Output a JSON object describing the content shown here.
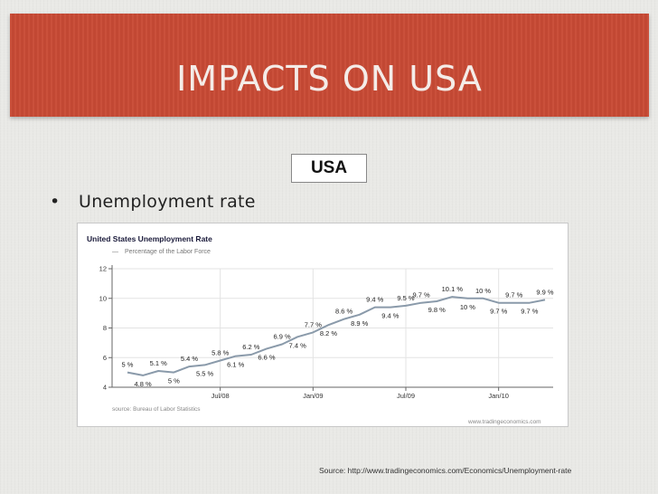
{
  "slide": {
    "title": "IMPACTS ON USA",
    "box_label": "USA",
    "bullet_symbol": "•",
    "bullet_text": "Unemployment rate",
    "source_note": "Source: http://www.tradingeconomics.com/Economics/Unemployment-rate",
    "colors": {
      "title_band": "#c84a35",
      "background": "#e9e9e6",
      "line": "#8a9aaa"
    }
  },
  "chart_data": {
    "type": "line",
    "title": "United States Unemployment Rate",
    "legend": [
      {
        "marker": "—",
        "label": "Percentage of the Labor Force"
      }
    ],
    "source_text": "source: Bureau of Labor Statistics",
    "watermark": "www.tradingeconomics.com",
    "ylim": [
      4,
      12
    ],
    "yticks": [
      {
        "v": 4,
        "label": "4"
      },
      {
        "v": 6,
        "label": "6"
      },
      {
        "v": 8,
        "label": "8"
      },
      {
        "v": 10,
        "label": "10"
      },
      {
        "v": 12,
        "label": "12"
      }
    ],
    "xlim": [
      0,
      23
    ],
    "xticks": [
      {
        "x": 6,
        "label": "Jul/08"
      },
      {
        "x": 12,
        "label": "Jan/09"
      },
      {
        "x": 18,
        "label": "Jul/09"
      },
      {
        "x": 24,
        "label": "Jan/10"
      }
    ],
    "grid": true,
    "series": [
      {
        "values": [
          [
            0,
            5.0
          ],
          [
            1,
            4.8
          ],
          [
            2,
            5.1
          ],
          [
            3,
            5.0
          ],
          [
            4,
            5.4
          ],
          [
            5,
            5.5
          ],
          [
            6,
            5.8
          ],
          [
            7,
            6.1
          ],
          [
            8,
            6.2
          ],
          [
            9,
            6.6
          ],
          [
            10,
            6.9
          ],
          [
            11,
            7.4
          ],
          [
            12,
            7.7
          ],
          [
            13,
            8.2
          ],
          [
            14,
            8.6
          ],
          [
            15,
            8.9
          ],
          [
            16,
            9.4
          ],
          [
            17,
            9.4
          ],
          [
            18,
            9.5
          ],
          [
            19,
            9.7
          ],
          [
            20,
            9.8
          ],
          [
            21,
            10.1
          ],
          [
            22,
            10.0
          ],
          [
            23,
            10.0
          ],
          [
            24,
            9.7
          ],
          [
            25,
            9.7
          ],
          [
            26,
            9.7
          ],
          [
            27,
            9.9
          ]
        ]
      }
    ],
    "data_labels": [
      {
        "x": 0,
        "v": 5.0,
        "text": "5 %",
        "pos": "above"
      },
      {
        "x": 1,
        "v": 4.8,
        "text": "4.8 %",
        "pos": "below"
      },
      {
        "x": 2,
        "v": 5.1,
        "text": "5.1 %",
        "pos": "above"
      },
      {
        "x": 3,
        "v": 5.0,
        "text": "5 %",
        "pos": "below"
      },
      {
        "x": 4,
        "v": 5.4,
        "text": "5.4 %",
        "pos": "above"
      },
      {
        "x": 5,
        "v": 5.5,
        "text": "5.5 %",
        "pos": "below"
      },
      {
        "x": 6,
        "v": 5.8,
        "text": "5.8 %",
        "pos": "above"
      },
      {
        "x": 7,
        "v": 6.1,
        "text": "6.1 %",
        "pos": "below"
      },
      {
        "x": 8,
        "v": 6.2,
        "text": "6.2 %",
        "pos": "above"
      },
      {
        "x": 9,
        "v": 6.6,
        "text": "6.6 %",
        "pos": "below"
      },
      {
        "x": 10,
        "v": 6.9,
        "text": "6.9 %",
        "pos": "above"
      },
      {
        "x": 11,
        "v": 7.4,
        "text": "7.4 %",
        "pos": "below"
      },
      {
        "x": 12,
        "v": 7.7,
        "text": "7.7 %",
        "pos": "above"
      },
      {
        "x": 13,
        "v": 8.2,
        "text": "8.2 %",
        "pos": "below"
      },
      {
        "x": 14,
        "v": 8.6,
        "text": "8.6 %",
        "pos": "above"
      },
      {
        "x": 15,
        "v": 8.9,
        "text": "8.9 %",
        "pos": "below"
      },
      {
        "x": 16,
        "v": 9.4,
        "text": "9.4 %",
        "pos": "above"
      },
      {
        "x": 17,
        "v": 9.4,
        "text": "9.4 %",
        "pos": "below"
      },
      {
        "x": 18,
        "v": 9.5,
        "text": "9.5 %",
        "pos": "above"
      },
      {
        "x": 19,
        "v": 9.7,
        "text": "9.7 %",
        "pos": "above"
      },
      {
        "x": 20,
        "v": 9.8,
        "text": "9.8 %",
        "pos": "below"
      },
      {
        "x": 21,
        "v": 10.1,
        "text": "10.1 %",
        "pos": "above"
      },
      {
        "x": 22,
        "v": 10.0,
        "text": "10 %",
        "pos": "below"
      },
      {
        "x": 23,
        "v": 10.0,
        "text": "10 %",
        "pos": "above"
      },
      {
        "x": 24,
        "v": 9.7,
        "text": "9.7 %",
        "pos": "below"
      },
      {
        "x": 25,
        "v": 9.7,
        "text": "9.7 %",
        "pos": "above"
      },
      {
        "x": 26,
        "v": 9.7,
        "text": "9.7 %",
        "pos": "below"
      },
      {
        "x": 27,
        "v": 9.9,
        "text": "9.9 %",
        "pos": "above"
      }
    ]
  }
}
